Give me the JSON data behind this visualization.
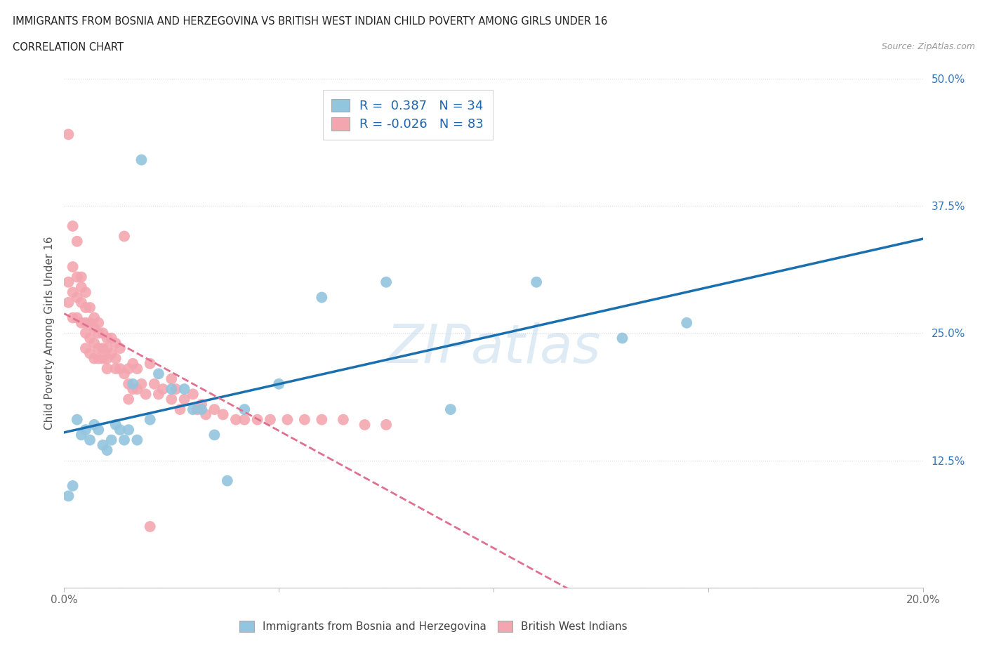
{
  "title_line1": "IMMIGRANTS FROM BOSNIA AND HERZEGOVINA VS BRITISH WEST INDIAN CHILD POVERTY AMONG GIRLS UNDER 16",
  "title_line2": "CORRELATION CHART",
  "source": "Source: ZipAtlas.com",
  "ylabel": "Child Poverty Among Girls Under 16",
  "xlim": [
    0.0,
    0.2
  ],
  "ylim": [
    0.0,
    0.5
  ],
  "xticks": [
    0.0,
    0.05,
    0.1,
    0.15,
    0.2
  ],
  "xticklabels": [
    "0.0%",
    "",
    "",
    "",
    "20.0%"
  ],
  "yticks": [
    0.0,
    0.125,
    0.25,
    0.375,
    0.5
  ],
  "yticklabels": [
    "",
    "12.5%",
    "25.0%",
    "37.5%",
    "50.0%"
  ],
  "r_blue": 0.387,
  "n_blue": 34,
  "r_pink": -0.026,
  "n_pink": 83,
  "blue_color": "#92c5de",
  "pink_color": "#f4a6b0",
  "blue_line_color": "#1a6faf",
  "pink_line_color": "#e07090",
  "legend1": "Immigrants from Bosnia and Herzegovina",
  "legend2": "British West Indians",
  "watermark": "ZIPatlas",
  "blue_x": [
    0.001,
    0.002,
    0.003,
    0.004,
    0.005,
    0.006,
    0.007,
    0.008,
    0.009,
    0.01,
    0.011,
    0.012,
    0.013,
    0.014,
    0.015,
    0.016,
    0.017,
    0.018,
    0.02,
    0.022,
    0.025,
    0.028,
    0.03,
    0.032,
    0.035,
    0.038,
    0.042,
    0.05,
    0.06,
    0.075,
    0.09,
    0.11,
    0.13,
    0.145
  ],
  "blue_y": [
    0.09,
    0.1,
    0.165,
    0.15,
    0.155,
    0.145,
    0.16,
    0.155,
    0.14,
    0.135,
    0.145,
    0.16,
    0.155,
    0.145,
    0.155,
    0.2,
    0.145,
    0.42,
    0.165,
    0.21,
    0.195,
    0.195,
    0.175,
    0.175,
    0.15,
    0.105,
    0.175,
    0.2,
    0.285,
    0.3,
    0.175,
    0.3,
    0.245,
    0.26
  ],
  "pink_x": [
    0.001,
    0.001,
    0.001,
    0.002,
    0.002,
    0.002,
    0.002,
    0.003,
    0.003,
    0.003,
    0.003,
    0.004,
    0.004,
    0.004,
    0.004,
    0.005,
    0.005,
    0.005,
    0.005,
    0.005,
    0.006,
    0.006,
    0.006,
    0.006,
    0.007,
    0.007,
    0.007,
    0.007,
    0.008,
    0.008,
    0.008,
    0.008,
    0.009,
    0.009,
    0.009,
    0.01,
    0.01,
    0.01,
    0.01,
    0.011,
    0.011,
    0.012,
    0.012,
    0.012,
    0.013,
    0.013,
    0.014,
    0.014,
    0.015,
    0.015,
    0.015,
    0.016,
    0.016,
    0.017,
    0.017,
    0.018,
    0.019,
    0.02,
    0.02,
    0.021,
    0.022,
    0.023,
    0.025,
    0.025,
    0.026,
    0.027,
    0.028,
    0.03,
    0.031,
    0.032,
    0.033,
    0.035,
    0.037,
    0.04,
    0.042,
    0.045,
    0.048,
    0.052,
    0.056,
    0.06,
    0.065,
    0.07,
    0.075
  ],
  "pink_y": [
    0.445,
    0.3,
    0.28,
    0.355,
    0.315,
    0.29,
    0.265,
    0.34,
    0.305,
    0.285,
    0.265,
    0.305,
    0.295,
    0.28,
    0.26,
    0.29,
    0.275,
    0.26,
    0.25,
    0.235,
    0.275,
    0.26,
    0.245,
    0.23,
    0.265,
    0.255,
    0.24,
    0.225,
    0.26,
    0.25,
    0.235,
    0.225,
    0.25,
    0.235,
    0.225,
    0.245,
    0.235,
    0.225,
    0.215,
    0.245,
    0.23,
    0.24,
    0.225,
    0.215,
    0.235,
    0.215,
    0.345,
    0.21,
    0.215,
    0.2,
    0.185,
    0.22,
    0.195,
    0.215,
    0.195,
    0.2,
    0.19,
    0.22,
    0.06,
    0.2,
    0.19,
    0.195,
    0.205,
    0.185,
    0.195,
    0.175,
    0.185,
    0.19,
    0.175,
    0.18,
    0.17,
    0.175,
    0.17,
    0.165,
    0.165,
    0.165,
    0.165,
    0.165,
    0.165,
    0.165,
    0.165,
    0.16,
    0.16
  ]
}
